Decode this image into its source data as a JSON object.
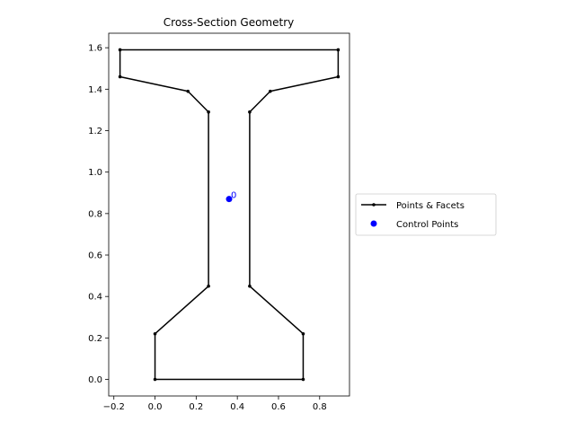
{
  "chart_data": {
    "type": "line",
    "title": "Cross-Section Geometry",
    "xlabel": "",
    "ylabel": "",
    "xlim": [
      -0.225,
      0.945
    ],
    "ylim": [
      -0.08,
      1.67
    ],
    "xticks": [
      -0.2,
      0.0,
      0.2,
      0.4,
      0.6,
      0.8
    ],
    "xtick_labels": [
      "−0.2",
      "0.0",
      "0.2",
      "0.4",
      "0.6",
      "0.8"
    ],
    "yticks": [
      0.0,
      0.2,
      0.4,
      0.6,
      0.8,
      1.0,
      1.2,
      1.4,
      1.6
    ],
    "ytick_labels": [
      "0.0",
      "0.2",
      "0.4",
      "0.6",
      "0.8",
      "1.0",
      "1.2",
      "1.4",
      "1.6"
    ],
    "grid": false,
    "legend_placement": "center-right-outside",
    "series": [
      {
        "name": "Points & Facets",
        "color": "#000000",
        "closed": true,
        "points": [
          [
            0.0,
            0.0
          ],
          [
            0.72,
            0.0
          ],
          [
            0.72,
            0.22
          ],
          [
            0.46,
            0.45
          ],
          [
            0.46,
            1.29
          ],
          [
            0.56,
            1.39
          ],
          [
            0.89,
            1.46
          ],
          [
            0.89,
            1.59
          ],
          [
            -0.17,
            1.59
          ],
          [
            -0.17,
            1.46
          ],
          [
            0.16,
            1.39
          ],
          [
            0.26,
            1.29
          ],
          [
            0.26,
            0.45
          ],
          [
            0.0,
            0.22
          ]
        ]
      },
      {
        "name": "Control Points",
        "color": "#0000ff",
        "points": [
          [
            0.36,
            0.87
          ]
        ],
        "labels": [
          "0"
        ]
      }
    ]
  }
}
